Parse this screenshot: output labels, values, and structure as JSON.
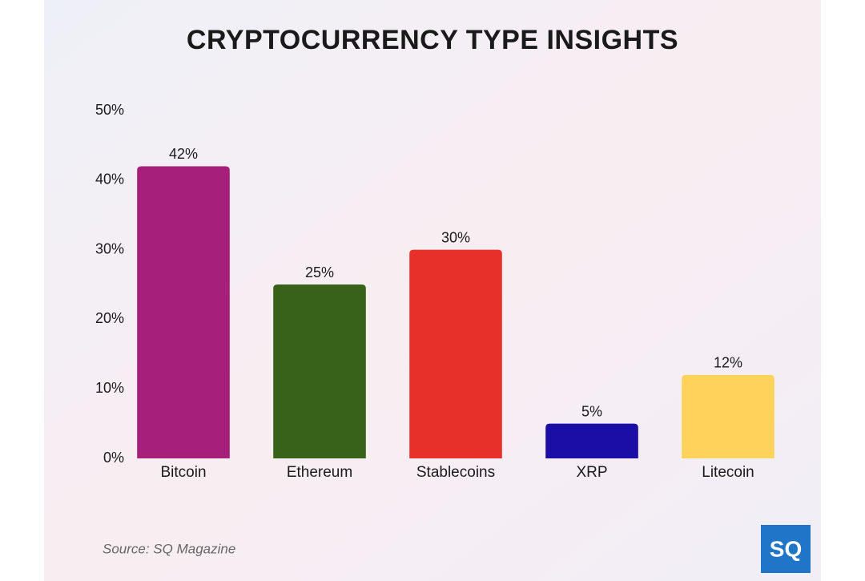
{
  "chart_data": {
    "type": "bar",
    "title": "CRYPTOCURRENCY TYPE INSIGHTS",
    "categories": [
      "Bitcoin",
      "Ethereum",
      "Stablecoins",
      "XRP",
      "Litecoin"
    ],
    "values": [
      42,
      25,
      30,
      5,
      12
    ],
    "value_labels": [
      "42%",
      "25%",
      "30%",
      "5%",
      "12%"
    ],
    "colors": [
      "#a61f7b",
      "#38621a",
      "#e7302a",
      "#1b0ea6",
      "#fdd35c"
    ],
    "ylim": [
      0,
      50
    ],
    "yticks": [
      {
        "value": 0,
        "label": "0%"
      },
      {
        "value": 10,
        "label": "10%"
      },
      {
        "value": 20,
        "label": "20%"
      },
      {
        "value": 30,
        "label": "30%"
      },
      {
        "value": 40,
        "label": "40%"
      },
      {
        "value": 50,
        "label": "50%"
      }
    ],
    "grid": false,
    "source": "Source: SQ Magazine",
    "logo": "SQ"
  }
}
